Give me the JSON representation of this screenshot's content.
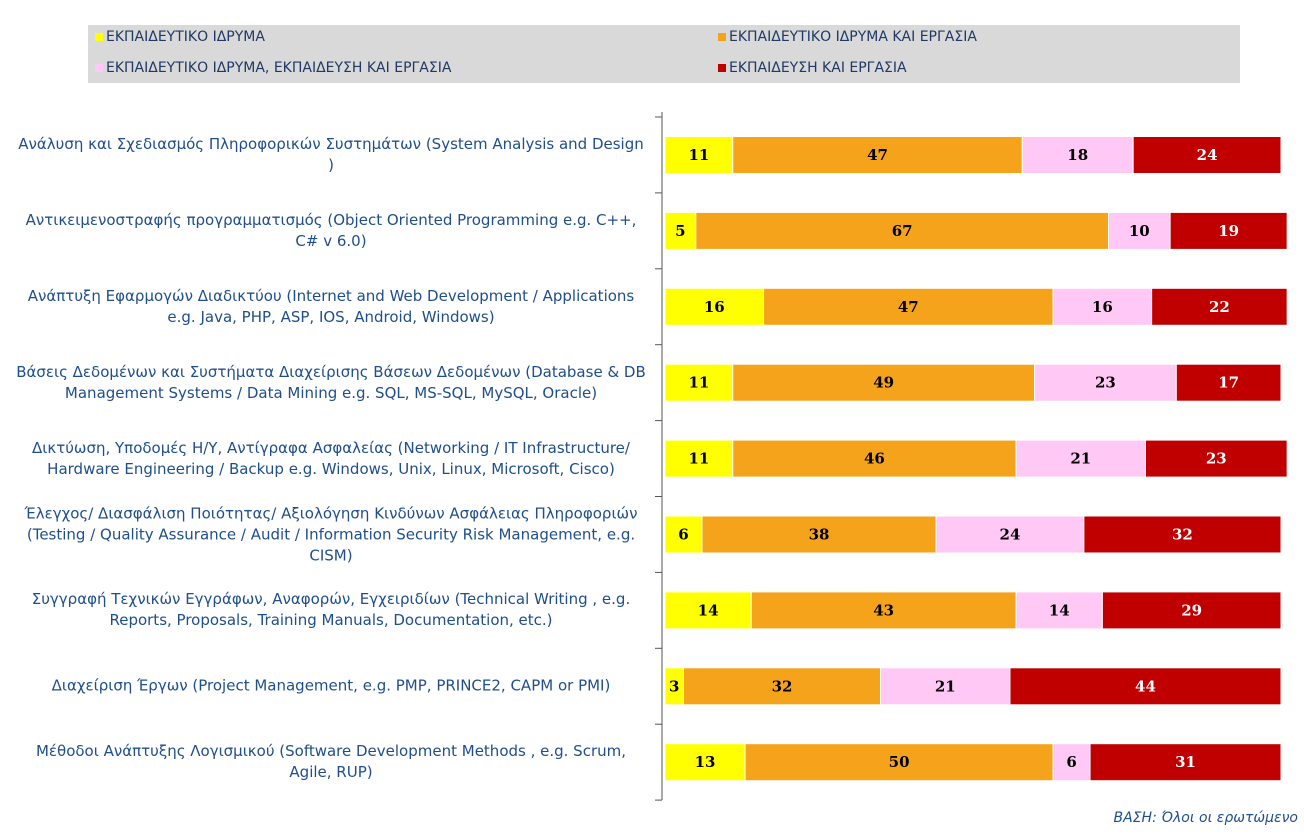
{
  "chart_data": {
    "type": "stacked_barh",
    "categories": [
      "Ανάλυση και Σχεδιασμός Πληροφορικών Συστημάτων (System Analysis and Design )",
      "Αντικειμενοστραφής προγραμματισμός (Object Oriented Programming e.g. C++, C# v 6.0)",
      "Ανάπτυξη Εφαρμογών Διαδικτύου (Internet and Web Development / Applications e.g. Java, PHP, ASP, IOS, Android, Windows)",
      "Βάσεις Δεδομένων και Συστήματα Διαχείρισης Βάσεων Δεδομένων (Database & DB Management Systems / Data Mining e.g. SQL, MS-SQL, MySQL, Oracle)",
      "Δικτύωση, Υποδομές Η/Υ, Αντίγραφα Ασφαλείας  (Networking / IT Infrastructure/ Hardware Engineering / Backup e.g. Windows, Unix, Linux, Microsoft, Cisco)",
      "Έλεγχος/ Διασφάλιση Ποιότητας/ Αξιολόγηση Κινδύνων Ασφάλειας Πληροφοριών (Testing / Quality Assurance / Audit / Information Security Risk Management, e.g. CISM)",
      "Συγγραφή Τεχνικών Εγγράφων, Αναφορών, Εγχειριδίων (Technical Writing , e.g. Reports, Proposals, Training Manuals, Documentation, etc.)",
      "Διαχείριση Έργων (Project Management, e.g. PMP, PRINCE2, CAPM or PMI)",
      "Μέθοδοι Ανάπτυξης Λογισμικού (Software Development Methods , e.g. Scrum, Agile, RUP)"
    ],
    "series": [
      {
        "name": "ΕΚΠΑΙΔΕΥΤΙΚΟ ΙΔΡΥΜΑ",
        "color": "#ffff00",
        "values": [
          11,
          5,
          16,
          11,
          11,
          6,
          14,
          3,
          13
        ]
      },
      {
        "name": "ΕΚΠΑΙΔΕΥΤΙΚΟ ΙΔΡΥΜΑ ΚΑΙ ΕΡΓΑΣΙΑ",
        "color": "#f5a31a",
        "values": [
          47,
          67,
          47,
          49,
          46,
          38,
          43,
          32,
          50
        ]
      },
      {
        "name": "ΕΚΠΑΙΔΕΥΤΙΚΟ ΙΔΡΥΜΑ, ΕΚΠΑΙΔΕΥΣΗ ΚΑΙ ΕΡΓΑΣΙΑ",
        "color": "#ffc8f5",
        "values": [
          18,
          10,
          16,
          23,
          21,
          24,
          14,
          21,
          6
        ]
      },
      {
        "name": "ΕΚΠΑΙΔΕΥΣΗ ΚΑΙ ΕΡΓΑΣΙΑ",
        "color": "#c00000",
        "values": [
          24,
          19,
          22,
          17,
          23,
          32,
          29,
          44,
          31
        ]
      }
    ],
    "xlim": [
      0,
      100
    ],
    "footnote": "ΒΑΣΗ: Όλοι οι ερωτώμενο"
  }
}
